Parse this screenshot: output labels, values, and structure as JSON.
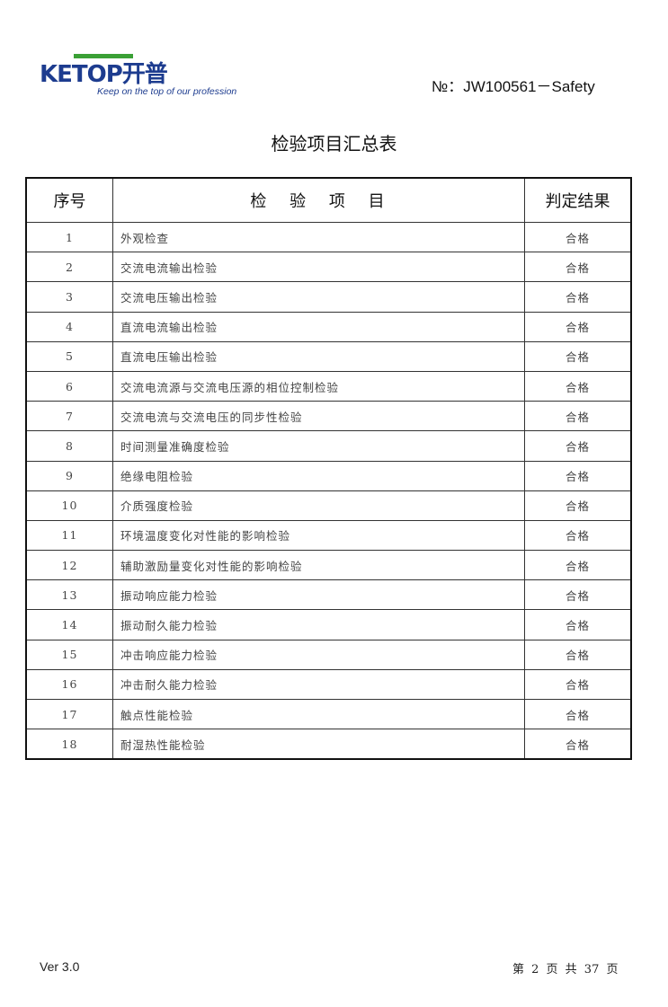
{
  "header": {
    "logo_text": "KETOP开普",
    "logo_tagline": "Keep on the top of our profession",
    "doc_number": "№：JW100561－Safety"
  },
  "title": "检验项目汇总表",
  "table": {
    "columns": [
      "序号",
      "检 验 项 目",
      "判定结果"
    ],
    "rows": [
      {
        "no": "1",
        "item": "外观检查",
        "result": "合格"
      },
      {
        "no": "2",
        "item": "交流电流输出检验",
        "result": "合格"
      },
      {
        "no": "3",
        "item": "交流电压输出检验",
        "result": "合格"
      },
      {
        "no": "4",
        "item": "直流电流输出检验",
        "result": "合格"
      },
      {
        "no": "5",
        "item": "直流电压输出检验",
        "result": "合格"
      },
      {
        "no": "6",
        "item": "交流电流源与交流电压源的相位控制检验",
        "result": "合格"
      },
      {
        "no": "7",
        "item": "交流电流与交流电压的同步性检验",
        "result": "合格"
      },
      {
        "no": "8",
        "item": "时间测量准确度检验",
        "result": "合格"
      },
      {
        "no": "9",
        "item": "绝缘电阻检验",
        "result": "合格"
      },
      {
        "no": "10",
        "item": "介质强度检验",
        "result": "合格"
      },
      {
        "no": "11",
        "item": "环境温度变化对性能的影响检验",
        "result": "合格"
      },
      {
        "no": "12",
        "item": "辅助激励量变化对性能的影响检验",
        "result": "合格"
      },
      {
        "no": "13",
        "item": "振动响应能力检验",
        "result": "合格"
      },
      {
        "no": "14",
        "item": "振动耐久能力检验",
        "result": "合格"
      },
      {
        "no": "15",
        "item": "冲击响应能力检验",
        "result": "合格"
      },
      {
        "no": "16",
        "item": "冲击耐久能力检验",
        "result": "合格"
      },
      {
        "no": "17",
        "item": "触点性能检验",
        "result": "合格"
      },
      {
        "no": "18",
        "item": "耐湿热性能检验",
        "result": "合格"
      }
    ]
  },
  "footer": {
    "version": "Ver 3.0",
    "page_info": "第 2 页 共 37 页"
  },
  "colors": {
    "logo_blue": "#1d3c8f",
    "logo_green": "#3aa035"
  }
}
